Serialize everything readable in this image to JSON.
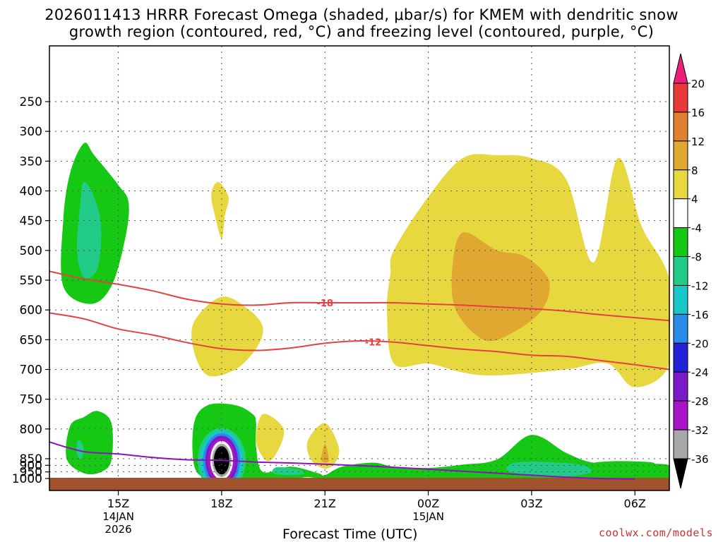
{
  "title_line1": "2026011413 HRRR Forecast Omega (shaded, μbar/s) for KMEM with dendritic snow",
  "title_line2": "growth region (contoured, red, °C) and freezing level (contoured, purple, °C)",
  "credit": "coolwx.com/models",
  "chart_data": {
    "type": "area",
    "title": "2026011413 HRRR Forecast Omega (shaded, μbar/s) for KMEM with dendritic snow growth region (contoured, red, °C) and freezing level (contoured, purple, °C)",
    "xlabel": "Forecast Time (UTC)",
    "ylabel": "",
    "x_ticks": [
      {
        "label": "15Z",
        "sub": [
          "14JAN",
          "2026"
        ],
        "hour": 1
      },
      {
        "label": "18Z",
        "sub": [],
        "hour": 4
      },
      {
        "label": "21Z",
        "sub": [],
        "hour": 7
      },
      {
        "label": "00Z",
        "sub": [
          "15JAN"
        ],
        "hour": 10
      },
      {
        "label": "03Z",
        "sub": [],
        "hour": 13
      },
      {
        "label": "06Z",
        "sub": [],
        "hour": 16
      }
    ],
    "xlim": [
      -1,
      17
    ],
    "y_ticks": [
      250,
      300,
      350,
      400,
      450,
      500,
      550,
      600,
      650,
      700,
      750,
      800,
      850,
      900,
      950,
      1000
    ],
    "colorbar": {
      "labels": [
        "20",
        "16",
        "12",
        "8",
        "4",
        "-4",
        "-8",
        "-12",
        "-16",
        "-20",
        "-24",
        "-28",
        "-32",
        "-36"
      ],
      "colors": [
        "#ee1f7a",
        "#e83a3a",
        "#e08030",
        "#e0a830",
        "#e8d840",
        "#ffffff",
        "#14c814",
        "#22cc88",
        "#18c8c8",
        "#2a8ce8",
        "#2222d8",
        "#7a1ac8",
        "#a814c8",
        "#a8a8a8",
        "#000000"
      ]
    },
    "contours": [
      {
        "name": "-18 °C",
        "label": "-18",
        "color": "#e84040",
        "hours": [
          -1,
          0,
          1,
          2,
          3,
          4,
          5,
          6,
          7,
          8,
          9,
          10,
          11,
          12,
          13,
          14,
          15,
          16,
          17
        ],
        "pressure": [
          535,
          548,
          557,
          568,
          582,
          590,
          592,
          588,
          588,
          588,
          588,
          590,
          592,
          595,
          598,
          602,
          608,
          613,
          618
        ]
      },
      {
        "name": "-12 °C",
        "label": "-12",
        "color": "#e84040",
        "hours": [
          -1,
          0,
          1,
          2,
          3,
          4,
          5,
          6,
          7,
          8,
          9,
          10,
          11,
          12,
          13,
          14,
          15,
          16,
          17
        ],
        "pressure": [
          605,
          615,
          632,
          642,
          655,
          665,
          668,
          664,
          656,
          652,
          654,
          660,
          666,
          670,
          676,
          678,
          685,
          692,
          700
        ]
      },
      {
        "name": "freezing level 0 °C",
        "label": "",
        "color": "#9010c0",
        "hours": [
          -1,
          0,
          1,
          2,
          3,
          4,
          5,
          6,
          7,
          8,
          9,
          10,
          11,
          12,
          13,
          14,
          15,
          16
        ],
        "pressure": [
          822,
          838,
          842,
          848,
          858,
          862,
          875,
          882,
          892,
          902,
          915,
          930,
          945,
          960,
          975,
          990,
          1000,
          1005
        ]
      }
    ],
    "shaded_regions": [
      {
        "band": "-8 to -4",
        "color": "#14c814",
        "hours": [
          0.0,
          0.3,
          1.0,
          1.3,
          1.2,
          0.8,
          0.2,
          -0.6,
          -0.6,
          -0.4
        ],
        "pressure": [
          320,
          340,
          390,
          420,
          480,
          560,
          590,
          560,
          450,
          370
        ]
      },
      {
        "band": "-12 to -8",
        "color": "#22cc88",
        "hours": [
          0.0,
          0.3,
          0.5,
          0.4,
          0.0,
          -0.2,
          -0.1
        ],
        "pressure": [
          385,
          410,
          460,
          530,
          545,
          500,
          420
        ]
      },
      {
        "band": "-8 to -4",
        "color": "#14c814",
        "hours": [
          0.0,
          0.4,
          0.8,
          0.8,
          0.5,
          0.0,
          -0.5,
          -0.4
        ],
        "pressure": [
          780,
          770,
          790,
          860,
          950,
          960,
          850,
          795
        ]
      },
      {
        "band": "-12 to -8",
        "color": "#22cc88",
        "hours": [
          -0.1,
          0.0,
          -0.1,
          -0.2,
          -0.2
        ],
        "pressure": [
          820,
          835,
          855,
          840,
          822
        ]
      },
      {
        "band": "4 to 8",
        "color": "#e8d840",
        "hours": [
          3.9,
          4.2,
          4.1,
          4.0,
          3.8,
          3.7
        ],
        "pressure": [
          385,
          410,
          440,
          480,
          440,
          405
        ]
      },
      {
        "band": "4 to 8",
        "color": "#e8d840",
        "hours": [
          4.0,
          4.8,
          5.2,
          5.0,
          4.4,
          3.6,
          3.2,
          3.2
        ],
        "pressure": [
          578,
          600,
          630,
          665,
          700,
          710,
          670,
          620
        ]
      },
      {
        "band": "-8 to -4",
        "color": "#14c814",
        "hours": [
          3.6,
          4.4,
          4.9,
          5.0,
          5.0,
          5.2,
          6.0,
          6.8,
          7.0,
          7.5,
          8.4,
          9.0,
          10.0,
          11.0,
          12.0,
          13.0,
          14.0,
          14.8,
          16.0,
          17.0,
          17.0,
          16.0,
          14.0,
          12.0,
          10.0,
          9.0,
          8.0,
          7.0,
          6.5,
          6.0,
          5.0,
          4.4,
          3.6,
          3.2,
          3.2
        ],
        "pressure": [
          760,
          760,
          775,
          790,
          830,
          950,
          910,
          960,
          975,
          910,
          880,
          910,
          920,
          895,
          855,
          810,
          840,
          880,
          890,
          900,
          1005,
          1005,
          1005,
          1005,
          1005,
          1005,
          1005,
          1005,
          990,
          1005,
          1005,
          1005,
          1005,
          900,
          790
        ]
      },
      {
        "band": "-36 and below",
        "color": "#000000",
        "hours": [
          4.0,
          4.25,
          4.4,
          4.25,
          4.0,
          3.75,
          3.6,
          3.75
        ],
        "pressure": [
          800,
          820,
          860,
          905,
          935,
          905,
          860,
          820
        ]
      },
      {
        "band": "4 to 8",
        "color": "#e8d840",
        "hours": [
          5.2,
          5.8,
          5.6,
          5.3,
          5.0
        ],
        "pressure": [
          775,
          800,
          840,
          865,
          820
        ]
      },
      {
        "band": "4 to 8",
        "color": "#e8d840",
        "hours": [
          7.0,
          7.4,
          7.3,
          7.0,
          6.6,
          6.5
        ],
        "pressure": [
          790,
          830,
          880,
          925,
          860,
          820
        ]
      },
      {
        "band": "-12 to -8",
        "color": "#22cc88",
        "hours": [
          5.6,
          6.2,
          6.4,
          6.0,
          5.5
        ],
        "pressure": [
          915,
          930,
          960,
          975,
          960
        ]
      },
      {
        "band": "-12 to -8",
        "color": "#22cc88",
        "hours": [
          12.5,
          13.5,
          14.5,
          14.7,
          14.0,
          13.0,
          12.3
        ],
        "pressure": [
          880,
          875,
          900,
          955,
          985,
          975,
          940
        ]
      },
      {
        "band": "-8 to -4",
        "color": "#14c814",
        "hours": [
          14.8,
          15.5,
          16.5,
          16.4,
          15.4
        ],
        "pressure": [
          882,
          868,
          878,
          908,
          900
        ]
      },
      {
        "band": "4 to 8",
        "color": "#e8d840",
        "hours": [
          9.0,
          10.0,
          11.0,
          12.0,
          13.0,
          14.0,
          14.8,
          15.5,
          16.2,
          17.0,
          17.0,
          16.0,
          15.2,
          14.0,
          12.0,
          11.0,
          10.0,
          9.0,
          8.8,
          8.9
        ],
        "pressure": [
          500,
          410,
          345,
          340,
          345,
          380,
          520,
          345,
          460,
          550,
          690,
          730,
          690,
          700,
          710,
          705,
          690,
          690,
          600,
          540
        ]
      },
      {
        "band": "8 to 12",
        "color": "#e0a830",
        "hours": [
          11.0,
          12.0,
          12.8,
          13.5,
          13.3,
          12.4,
          11.6,
          10.8,
          10.7
        ],
        "pressure": [
          470,
          500,
          510,
          550,
          600,
          640,
          650,
          600,
          530
        ]
      },
      {
        "band": "8 to 12",
        "color": "#e0a830",
        "hours": [
          7.0,
          7.1,
          7.1,
          7.0,
          6.9,
          6.9
        ],
        "pressure": [
          825,
          845,
          870,
          880,
          865,
          845
        ]
      }
    ]
  }
}
